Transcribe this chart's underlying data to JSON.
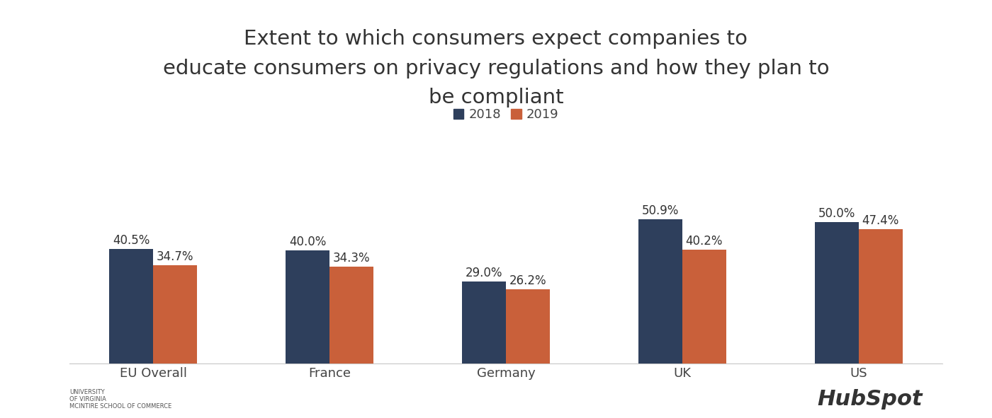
{
  "title": "Extent to which consumers expect companies to\neducate consumers on privacy regulations and how they plan to\nbe compliant",
  "categories": [
    "EU Overall",
    "France",
    "Germany",
    "UK",
    "US"
  ],
  "values_2018": [
    40.5,
    40.0,
    29.0,
    50.9,
    50.0
  ],
  "values_2019": [
    34.7,
    34.3,
    26.2,
    40.2,
    47.4
  ],
  "labels_2018": [
    "40.5%",
    "40.0%",
    "29.0%",
    "50.9%",
    "50.0%"
  ],
  "labels_2019": [
    "34.7%",
    "34.3%",
    "26.2%",
    "40.2%",
    "47.4%"
  ],
  "color_2018": "#2e3f5c",
  "color_2019": "#c9603a",
  "background_color": "#ffffff",
  "bar_width": 0.25,
  "title_fontsize": 21,
  "label_fontsize": 12,
  "tick_fontsize": 13,
  "legend_fontsize": 13,
  "ylim": [
    0,
    62
  ],
  "legend_labels": [
    "2018",
    "2019"
  ]
}
